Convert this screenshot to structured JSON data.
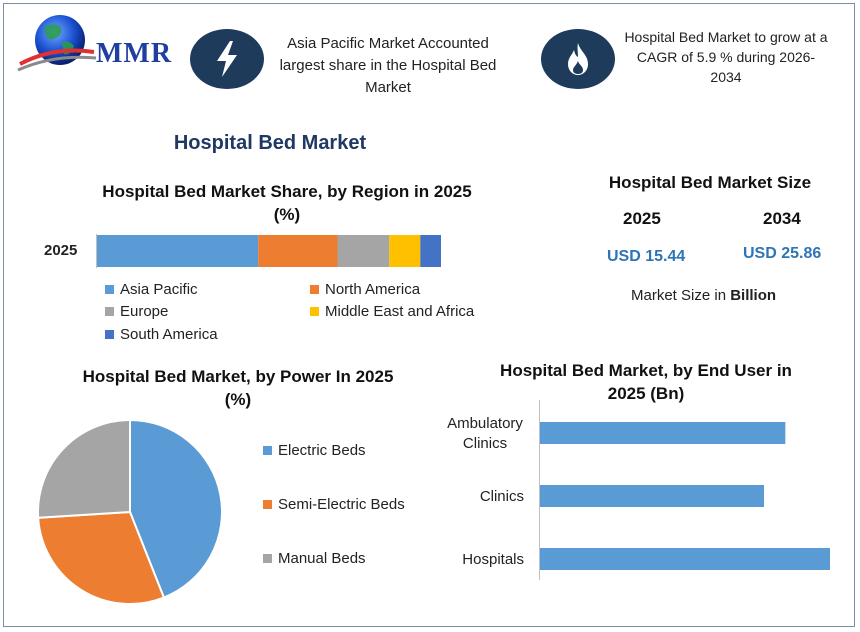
{
  "logo": {
    "text": "MMR"
  },
  "headline_1": "Asia Pacific Market Accounted largest share in the Hospital Bed Market",
  "headline_2": "Hospital Bed Market to grow at a CAGR of 5.9 % during 2026-2034",
  "main_title": "Hospital Bed Market",
  "colors": {
    "dark_circle": "#1f3b5c",
    "blue": "#5b9bd5",
    "orange": "#ed7d31",
    "gray": "#a5a5a5",
    "yellow": "#ffc000",
    "dark_blue": "#4472c4",
    "value_blue": "#2e75b6",
    "title_navy": "#1f3864"
  },
  "icons": [
    "globe-icon",
    "lightning-icon",
    "flame-icon"
  ],
  "market_size": {
    "title": "Hospital Bed Market Size",
    "year_1": "2025",
    "year_2": "2034",
    "value_1": "USD 15.44",
    "value_2": "USD 25.86",
    "note_prefix": "Market Size in",
    "note_bold": "Billion"
  },
  "chart_data": [
    {
      "type": "bar",
      "orientation": "horizontal-stacked",
      "title": "Hospital Bed Market Share, by Region in 2025 (%)",
      "categories": [
        "2025"
      ],
      "series": [
        {
          "name": "Asia Pacific",
          "values": [
            47
          ]
        },
        {
          "name": "North America",
          "values": [
            23
          ]
        },
        {
          "name": "Europe",
          "values": [
            15
          ]
        },
        {
          "name": "Middle East and Africa",
          "values": [
            9
          ]
        },
        {
          "name": "South America",
          "values": [
            6
          ]
        }
      ],
      "legend": "bottom"
    },
    {
      "type": "pie",
      "title": "Hospital Bed Market, by Power In 2025 (%)",
      "labels": [
        "Electric Beds",
        "Semi-Electric Beds",
        "Manual Beds"
      ],
      "values": [
        44,
        30,
        26
      ],
      "legend": "right"
    },
    {
      "type": "bar",
      "orientation": "horizontal",
      "title": "Hospital Bed Market, by  End User in 2025 (Bn)",
      "categories": [
        "Ambulatory Clinics",
        "Clinics",
        "Hospitals"
      ],
      "values": [
        4.6,
        4.2,
        5.6
      ],
      "xlim": [
        0,
        6
      ]
    }
  ]
}
